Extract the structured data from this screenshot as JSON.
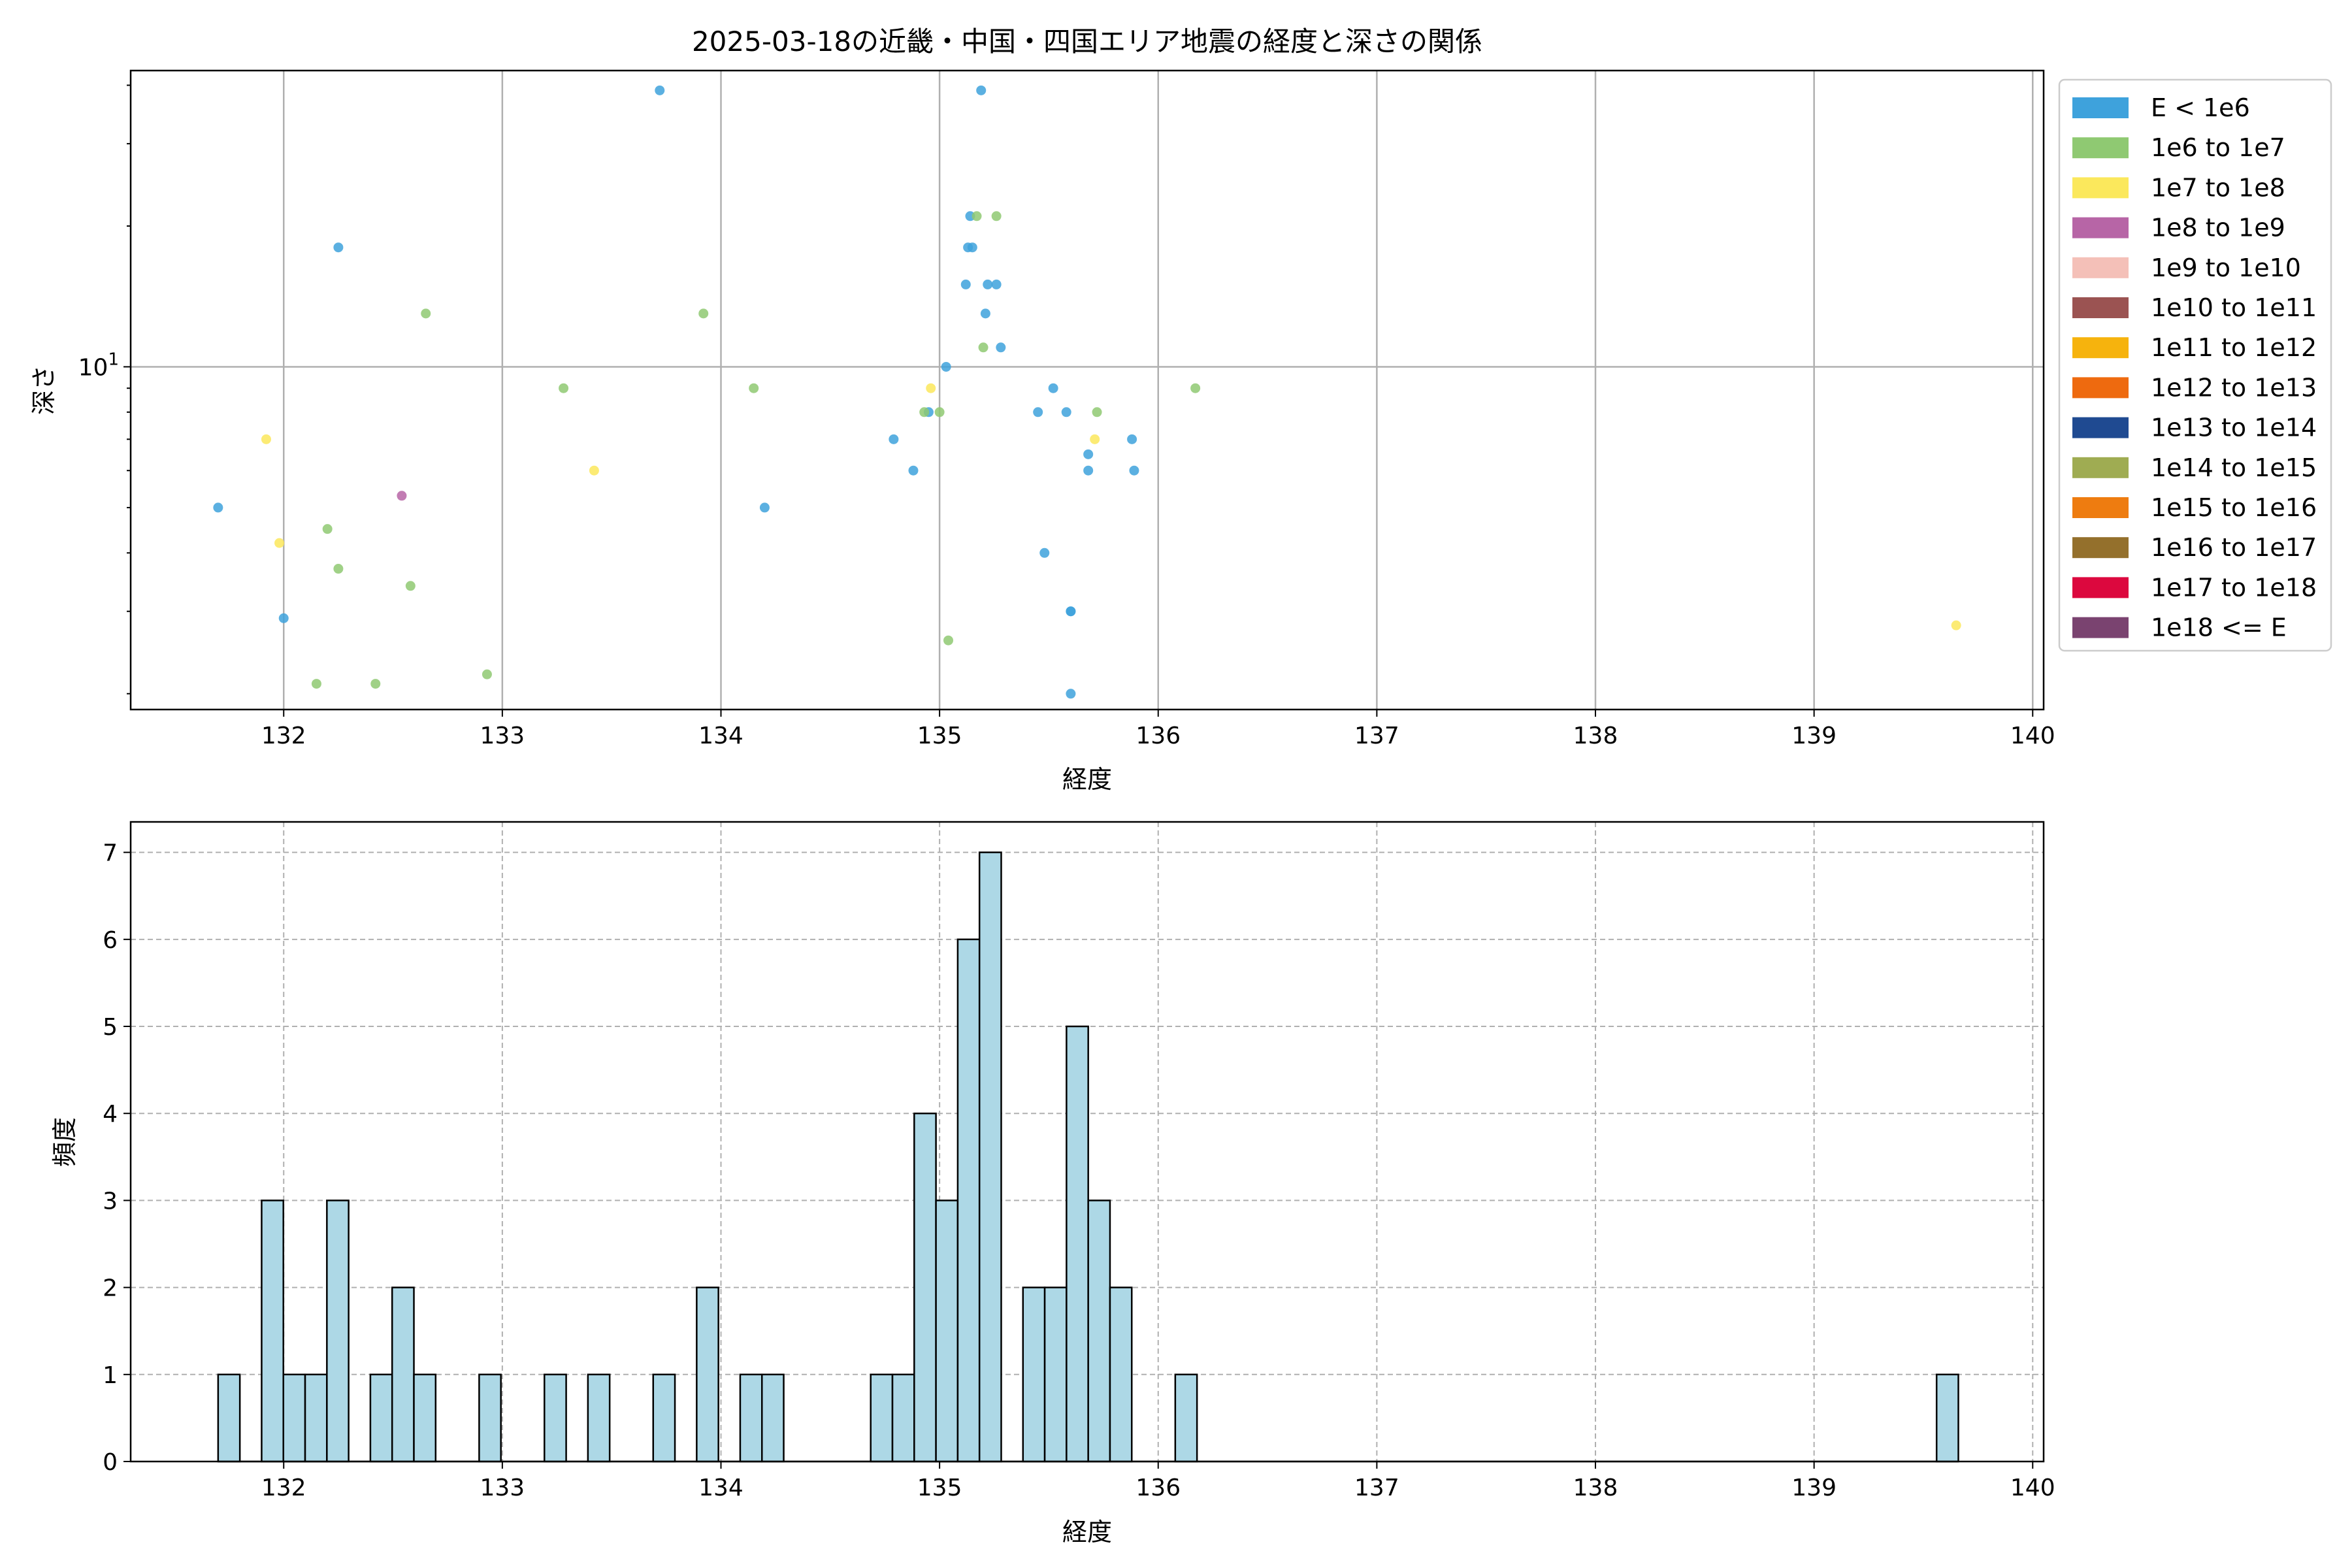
{
  "chart_data": [
    {
      "type": "scatter",
      "title": "2025-03-18の近畿・中国・四国エリア地震の経度と深さの関係",
      "xlabel": "経度",
      "ylabel": "深さ",
      "xlim": [
        131.3,
        140.05
      ],
      "ylim": [
        1.85,
        43
      ],
      "yscale": "log",
      "grid": true,
      "legend_placement": "outside-right",
      "x_ticks": [
        132,
        133,
        134,
        135,
        136,
        137,
        138,
        139,
        140
      ],
      "x_tick_labels": [
        "132",
        "133",
        "134",
        "135",
        "136",
        "137",
        "138",
        "139",
        "140"
      ],
      "y_ticks": [
        10
      ],
      "y_tick_labels": [
        "10"
      ],
      "y_tick_superscripts": [
        "1"
      ],
      "legend": [
        {
          "label": "E < 1e6",
          "color": "#3ea2dc"
        },
        {
          "label": "1e6 to 1e7",
          "color": "#8fc972"
        },
        {
          "label": "1e7 to 1e8",
          "color": "#fbe85c"
        },
        {
          "label": "1e8 to 1e9",
          "color": "#b765a6"
        },
        {
          "label": "1e9 to 1e10",
          "color": "#f4c0b8"
        },
        {
          "label": "1e10 to 1e11",
          "color": "#9b5352"
        },
        {
          "label": "1e11 to 1e12",
          "color": "#f6b30d"
        },
        {
          "label": "1e12 to 1e13",
          "color": "#ee6a0f"
        },
        {
          "label": "1e13 to 1e14",
          "color": "#1f4a91"
        },
        {
          "label": "1e14 to 1e15",
          "color": "#9fac52"
        },
        {
          "label": "1e15 to 1e16",
          "color": "#ee7c10"
        },
        {
          "label": "1e16 to 1e17",
          "color": "#94702c"
        },
        {
          "label": "1e17 to 1e18",
          "color": "#dc083e"
        },
        {
          "label": "1e18 <= E",
          "color": "#7a4370"
        }
      ],
      "series": [
        {
          "class_index": 0,
          "points": [
            [
              131.7,
              5.0
            ],
            [
              132.0,
              2.9
            ],
            [
              132.25,
              18
            ],
            [
              133.72,
              39
            ],
            [
              134.2,
              5.0
            ],
            [
              134.79,
              7.0
            ],
            [
              134.88,
              6.0
            ],
            [
              134.95,
              8.0
            ],
            [
              135.03,
              10.0
            ],
            [
              135.12,
              15
            ],
            [
              135.13,
              18
            ],
            [
              135.14,
              21
            ],
            [
              135.15,
              18
            ],
            [
              135.19,
              39
            ],
            [
              135.21,
              13
            ],
            [
              135.22,
              15
            ],
            [
              135.26,
              15
            ],
            [
              135.28,
              11
            ],
            [
              135.45,
              8.0
            ],
            [
              135.48,
              4.0
            ],
            [
              135.52,
              9.0
            ],
            [
              135.58,
              8.0
            ],
            [
              135.6,
              3.0
            ],
            [
              135.6,
              3.0
            ],
            [
              135.6,
              2.0
            ],
            [
              135.68,
              6.0
            ],
            [
              135.68,
              6.5
            ],
            [
              135.88,
              7.0
            ],
            [
              135.89,
              6.0
            ]
          ]
        },
        {
          "class_index": 1,
          "points": [
            [
              132.15,
              2.1
            ],
            [
              132.2,
              4.5
            ],
            [
              132.25,
              3.7
            ],
            [
              132.42,
              2.1
            ],
            [
              132.58,
              3.4
            ],
            [
              132.65,
              13
            ],
            [
              132.93,
              2.2
            ],
            [
              133.28,
              9.0
            ],
            [
              133.92,
              13
            ],
            [
              134.15,
              9.0
            ],
            [
              134.93,
              8.0
            ],
            [
              135.0,
              8.0
            ],
            [
              135.04,
              2.6
            ],
            [
              135.17,
              21
            ],
            [
              135.2,
              11
            ],
            [
              135.26,
              21
            ],
            [
              135.72,
              8.0
            ],
            [
              136.17,
              9.0
            ]
          ]
        },
        {
          "class_index": 2,
          "points": [
            [
              131.92,
              7.0
            ],
            [
              131.98,
              4.2
            ],
            [
              133.42,
              6.0
            ],
            [
              134.96,
              9.0
            ],
            [
              135.71,
              7.0
            ],
            [
              139.65,
              2.8
            ]
          ]
        },
        {
          "class_index": 3,
          "points": [
            [
              132.54,
              5.3
            ]
          ]
        }
      ]
    },
    {
      "type": "bar",
      "title": "",
      "xlabel": "経度",
      "ylabel": "頻度",
      "xlim": [
        131.3,
        140.05
      ],
      "ylim": [
        0,
        7.35
      ],
      "grid": true,
      "bar_color": "#add8e6",
      "bar_edge_color": "#000000",
      "x_ticks": [
        132,
        133,
        134,
        135,
        136,
        137,
        138,
        139,
        140
      ],
      "x_tick_labels": [
        "132",
        "133",
        "134",
        "135",
        "136",
        "137",
        "138",
        "139",
        "140"
      ],
      "y_ticks": [
        0,
        1,
        2,
        3,
        4,
        5,
        6,
        7
      ],
      "y_tick_labels": [
        "0",
        "1",
        "2",
        "3",
        "4",
        "5",
        "6",
        "7"
      ],
      "bin_start": 131.7,
      "bin_width": 0.0995,
      "counts": [
        1,
        0,
        3,
        1,
        1,
        3,
        0,
        1,
        2,
        1,
        0,
        0,
        1,
        0,
        0,
        1,
        0,
        1,
        0,
        0,
        1,
        0,
        2,
        0,
        1,
        1,
        0,
        0,
        0,
        0,
        1,
        1,
        4,
        3,
        6,
        7,
        0,
        2,
        2,
        5,
        3,
        2,
        0,
        0,
        1,
        0,
        0,
        0,
        0,
        0,
        0,
        0,
        0,
        0,
        0,
        0,
        0,
        0,
        0,
        0,
        0,
        0,
        0,
        0,
        0,
        0,
        0,
        0,
        0,
        0,
        0,
        0,
        0,
        0,
        0,
        0,
        0,
        0,
        0,
        1
      ]
    }
  ]
}
